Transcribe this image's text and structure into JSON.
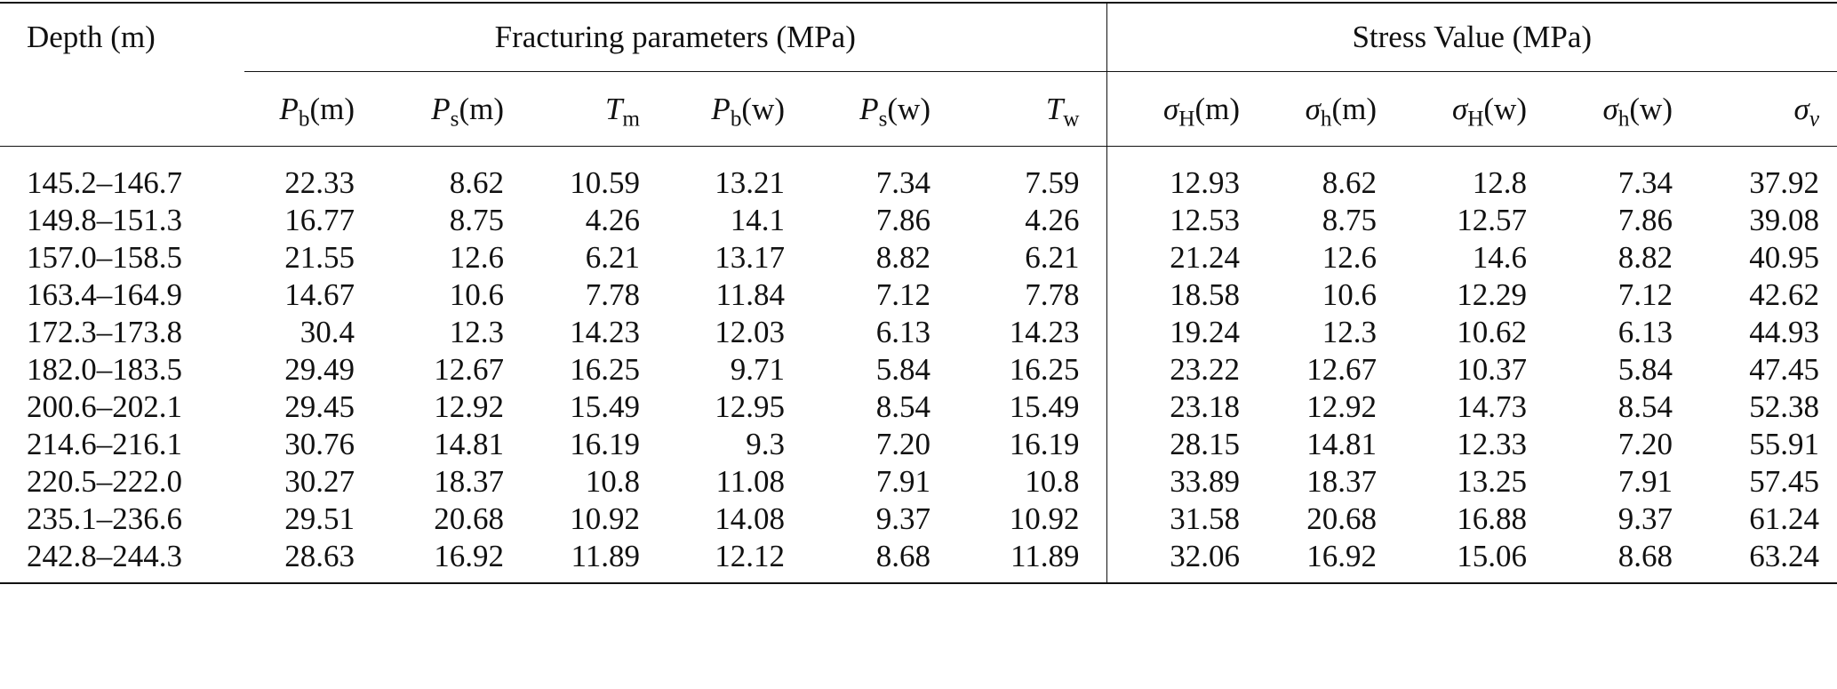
{
  "header": {
    "depth": "Depth (m)",
    "group_fracturing": "Fracturing parameters (MPa)",
    "group_stress": "Stress Value (MPa)",
    "columns": [
      {
        "sym": "P",
        "sub": "b",
        "suffix": "(m)"
      },
      {
        "sym": "P",
        "sub": "s",
        "suffix": "(m)"
      },
      {
        "sym": "T",
        "sub": "m",
        "suffix": ""
      },
      {
        "sym": "P",
        "sub": "b",
        "suffix": "(w)"
      },
      {
        "sym": "P",
        "sub": "s",
        "suffix": "(w)"
      },
      {
        "sym": "T",
        "sub": "w",
        "suffix": ""
      },
      {
        "sym": "σ",
        "sub": "H",
        "suffix": "(m)"
      },
      {
        "sym": "σ",
        "sub": "h",
        "suffix": "(m)"
      },
      {
        "sym": "σ",
        "sub": "H",
        "suffix": "(w)"
      },
      {
        "sym": "σ",
        "sub": "h",
        "suffix": "(w)"
      },
      {
        "sym": "σ",
        "sub": "v",
        "suffix": ""
      }
    ]
  },
  "rows": [
    [
      "145.2–146.7",
      "22.33",
      "8.62",
      "10.59",
      "13.21",
      "7.34",
      "7.59",
      "12.93",
      "8.62",
      "12.8",
      "7.34",
      "37.92"
    ],
    [
      "149.8–151.3",
      "16.77",
      "8.75",
      "4.26",
      "14.1",
      "7.86",
      "4.26",
      "12.53",
      "8.75",
      "12.57",
      "7.86",
      "39.08"
    ],
    [
      "157.0–158.5",
      "21.55",
      "12.6",
      "6.21",
      "13.17",
      "8.82",
      "6.21",
      "21.24",
      "12.6",
      "14.6",
      "8.82",
      "40.95"
    ],
    [
      "163.4–164.9",
      "14.67",
      "10.6",
      "7.78",
      "11.84",
      "7.12",
      "7.78",
      "18.58",
      "10.6",
      "12.29",
      "7.12",
      "42.62"
    ],
    [
      "172.3–173.8",
      "30.4",
      "12.3",
      "14.23",
      "12.03",
      "6.13",
      "14.23",
      "19.24",
      "12.3",
      "10.62",
      "6.13",
      "44.93"
    ],
    [
      "182.0–183.5",
      "29.49",
      "12.67",
      "16.25",
      "9.71",
      "5.84",
      "16.25",
      "23.22",
      "12.67",
      "10.37",
      "5.84",
      "47.45"
    ],
    [
      "200.6–202.1",
      "29.45",
      "12.92",
      "15.49",
      "12.95",
      "8.54",
      "15.49",
      "23.18",
      "12.92",
      "14.73",
      "8.54",
      "52.38"
    ],
    [
      "214.6–216.1",
      "30.76",
      "14.81",
      "16.19",
      "9.3",
      "7.20",
      "16.19",
      "28.15",
      "14.81",
      "12.33",
      "7.20",
      "55.91"
    ],
    [
      "220.5–222.0",
      "30.27",
      "18.37",
      "10.8",
      "11.08",
      "7.91",
      "10.8",
      "33.89",
      "18.37",
      "13.25",
      "7.91",
      "57.45"
    ],
    [
      "235.1–236.6",
      "29.51",
      "20.68",
      "10.92",
      "14.08",
      "9.37",
      "10.92",
      "31.58",
      "20.68",
      "16.88",
      "9.37",
      "61.24"
    ],
    [
      "242.8–244.3",
      "28.63",
      "16.92",
      "11.89",
      "12.12",
      "8.68",
      "11.89",
      "32.06",
      "16.92",
      "15.06",
      "8.68",
      "63.24"
    ]
  ]
}
